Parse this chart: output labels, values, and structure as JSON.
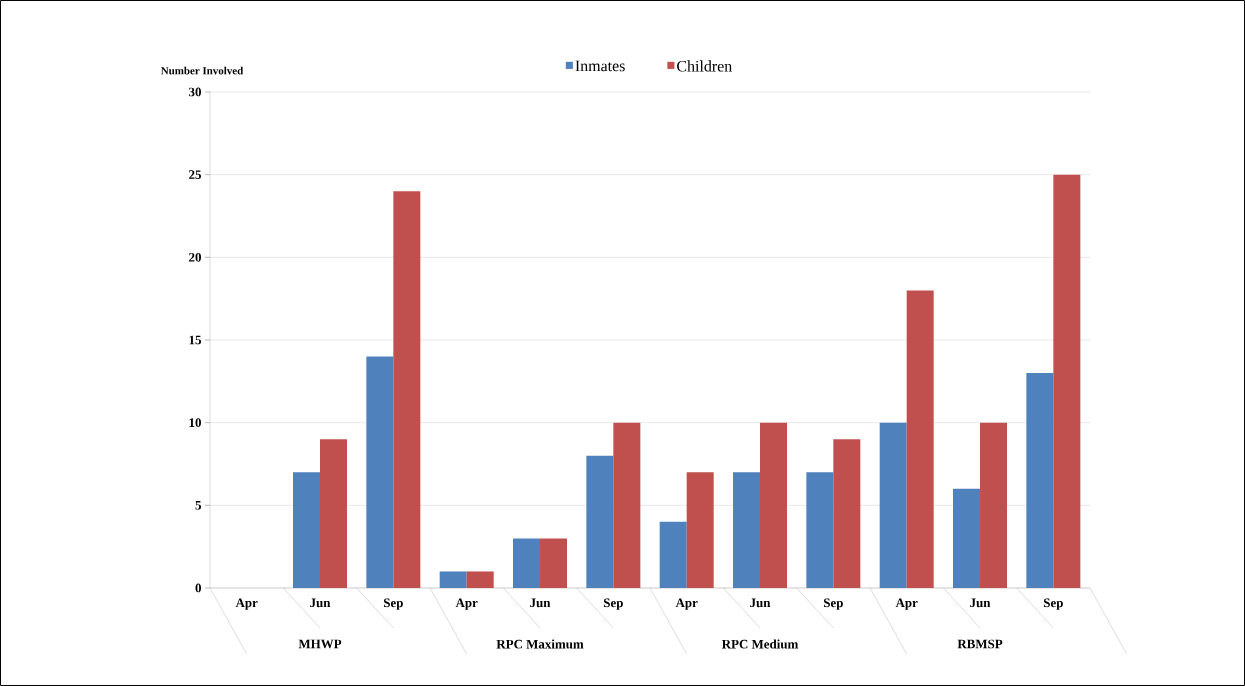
{
  "chart_data": {
    "type": "bar",
    "ylabel": "Number Involved",
    "categories": [
      "Apr",
      "Jun",
      "Sep",
      "Apr",
      "Jun",
      "Sep",
      "Apr",
      "Jun",
      "Sep",
      "Apr",
      "Jun",
      "Sep"
    ],
    "annotations": [
      "MHWP",
      "RPC Maximum",
      "RPC Medium",
      "RBMSP"
    ],
    "series": [
      {
        "name": "Inmates",
        "color": "#4f81bd",
        "values": [
          0,
          7,
          14,
          1,
          3,
          8,
          4,
          7,
          7,
          10,
          6,
          13
        ]
      },
      {
        "name": "Children",
        "color": "#c0504d",
        "values": [
          0,
          9,
          24,
          1,
          3,
          10,
          7,
          10,
          9,
          18,
          10,
          25
        ]
      }
    ],
    "ylim": [
      0,
      30
    ],
    "yticks": [
      0,
      5,
      10,
      15,
      20,
      25,
      30
    ],
    "grid": "y",
    "legend": "top"
  }
}
